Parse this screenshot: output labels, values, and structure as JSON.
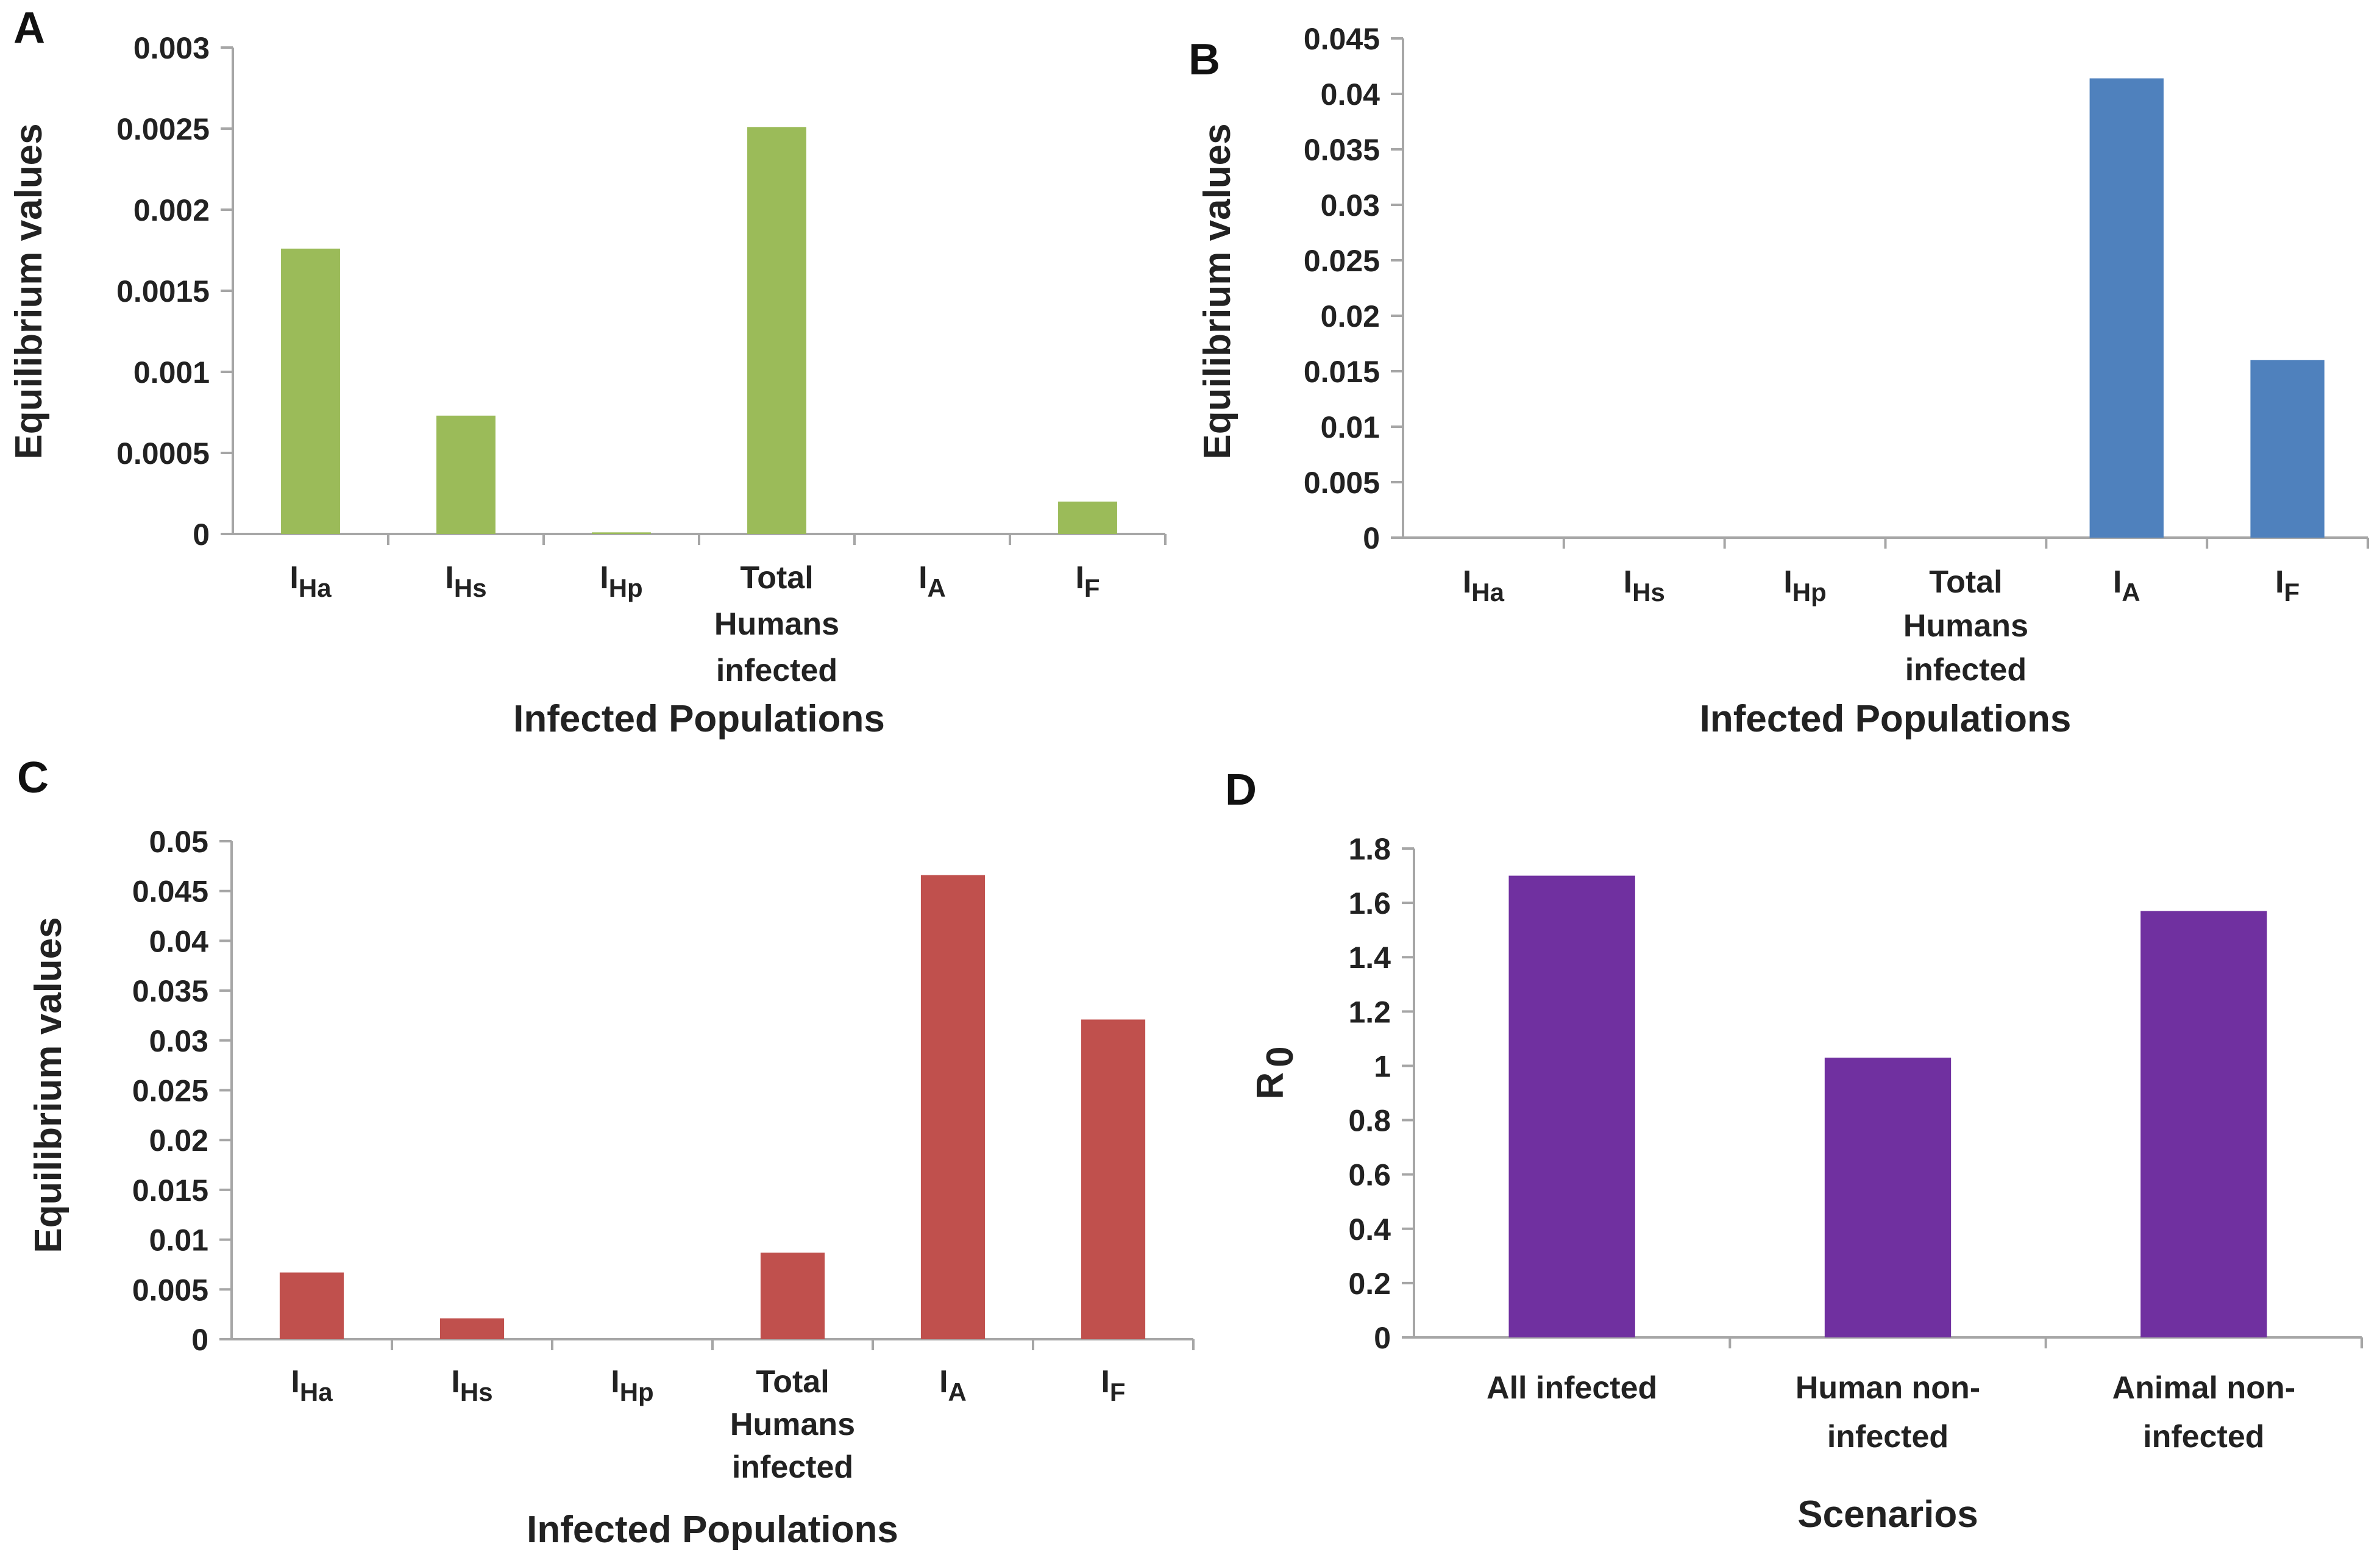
{
  "chart_data": [
    {
      "panel": "A",
      "type": "bar",
      "color": "#9bbb59",
      "categories": [
        {
          "main": "I",
          "sub": "Ha"
        },
        {
          "main": "I",
          "sub": "Hs"
        },
        {
          "main": "I",
          "sub": "Hp"
        },
        {
          "lines": [
            "Total",
            "Humans",
            "infected"
          ]
        },
        {
          "main": "I",
          "sub": "A"
        },
        {
          "main": "I",
          "sub": "F"
        }
      ],
      "values": [
        0.00176,
        0.00073,
        1e-05,
        0.00251,
        0.0,
        0.0002
      ],
      "ylim": [
        0,
        0.003
      ],
      "yticks": [
        "0",
        "0.0005",
        "0.001",
        "0.0015",
        "0.002",
        "0.0025",
        "0.003"
      ],
      "xlabel": "Infected Populations",
      "ylabel": "Equilibrium values"
    },
    {
      "panel": "B",
      "type": "bar",
      "color": "#4f81bd",
      "categories": [
        {
          "main": "I",
          "sub": "Ha"
        },
        {
          "main": "I",
          "sub": "Hs"
        },
        {
          "main": "I",
          "sub": "Hp"
        },
        {
          "lines": [
            "Total",
            "Humans",
            "infected"
          ]
        },
        {
          "main": "I",
          "sub": "A"
        },
        {
          "main": "I",
          "sub": "F"
        }
      ],
      "values": [
        0.0,
        0.0,
        0.0,
        0.0,
        0.0414,
        0.016
      ],
      "ylim": [
        0,
        0.045
      ],
      "yticks": [
        "0",
        "0.005",
        "0.01",
        "0.015",
        "0.02",
        "0.025",
        "0.03",
        "0.035",
        "0.04",
        "0.045"
      ],
      "xlabel": "Infected Populations",
      "ylabel": "Equilibrium values"
    },
    {
      "panel": "C",
      "type": "bar",
      "color": "#c0504d",
      "categories": [
        {
          "main": "I",
          "sub": "Ha"
        },
        {
          "main": "I",
          "sub": "Hs"
        },
        {
          "main": "I",
          "sub": "Hp"
        },
        {
          "lines": [
            "Total",
            "Humans",
            "infected"
          ]
        },
        {
          "main": "I",
          "sub": "A"
        },
        {
          "main": "I",
          "sub": "F"
        }
      ],
      "values": [
        0.0067,
        0.0021,
        0.0,
        0.0087,
        0.0466,
        0.0321
      ],
      "ylim": [
        0,
        0.05
      ],
      "yticks": [
        "0",
        "0.005",
        "0.01",
        "0.015",
        "0.02",
        "0.025",
        "0.03",
        "0.035",
        "0.04",
        "0.045",
        "0.05"
      ],
      "xlabel": "Infected Populations",
      "ylabel": "Equilibrium values"
    },
    {
      "panel": "D",
      "type": "bar",
      "color": "#7030a0",
      "categories": [
        {
          "lines": [
            "All infected"
          ]
        },
        {
          "lines": [
            "Human non-",
            "infected"
          ]
        },
        {
          "lines": [
            "Animal non-",
            "infected"
          ]
        }
      ],
      "values": [
        1.7,
        1.03,
        1.57
      ],
      "ylim": [
        0,
        1.8
      ],
      "yticks": [
        "0",
        "0.2",
        "0.4",
        "0.6",
        "0.8",
        "1",
        "1.2",
        "1.4",
        "1.6",
        "1.8"
      ],
      "xlabel": "Scenarios",
      "ylabel": {
        "main": "R",
        "sub": "0"
      }
    }
  ]
}
